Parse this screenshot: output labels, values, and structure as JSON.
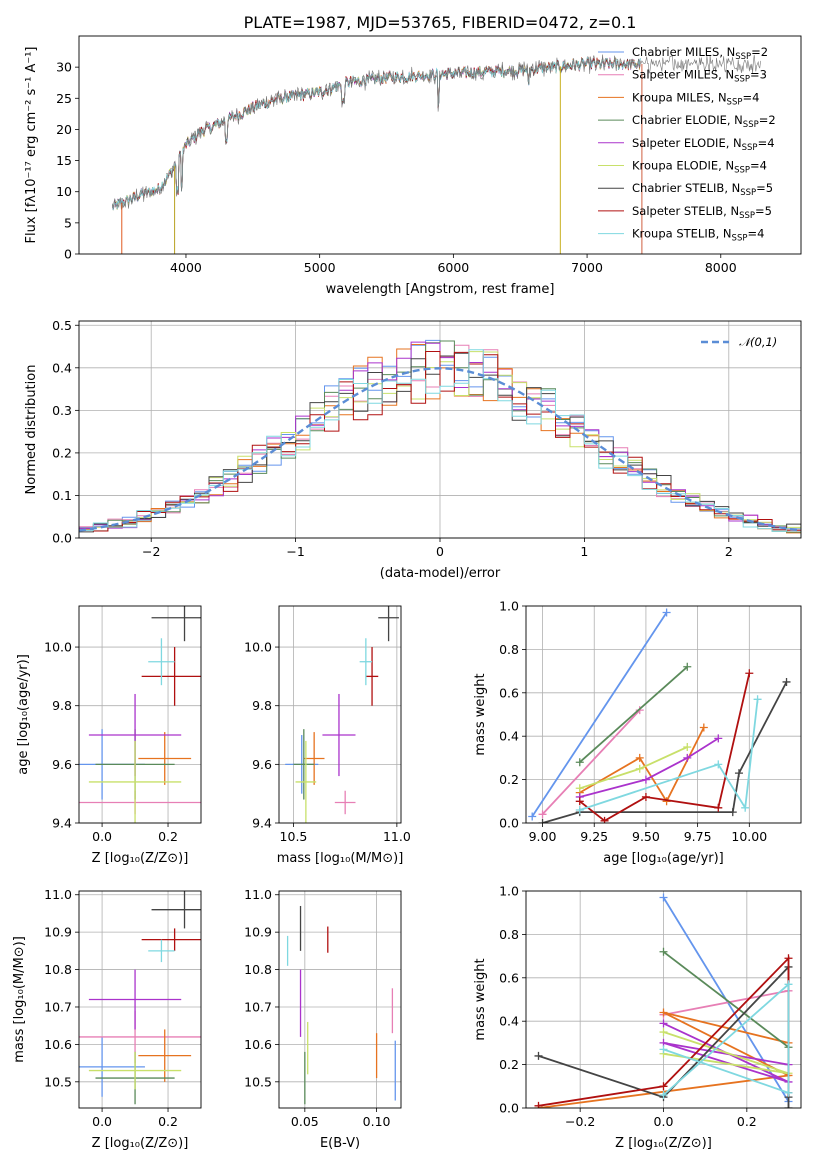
{
  "figure_title": "PLATE=1987, MJD=53765, FIBERID=0472, z=0.1",
  "colors": [
    "#5f8fa0",
    "#de8b8b",
    "#b8860b",
    "#3a7a4a",
    "#a020f0",
    "#dddd55",
    "#333333",
    "#b22222",
    "#40d0e0"
  ],
  "model_colors": {
    "chabrier_miles": "#6495ed",
    "salpeter_miles": "#e77fb5",
    "kroupa_miles": "#e67320",
    "chabrier_elodie": "#5a8a5a",
    "salpeter_elodie": "#aa33cc",
    "kroupa_elodie": "#c8e06a",
    "chabrier_stelib": "#444444",
    "salpeter_stelib": "#b01010",
    "kroupa_stelib": "#7fd8e0"
  },
  "chart_data": [
    {
      "id": "spectrum",
      "type": "line",
      "title": "PLATE=1987, MJD=53765, FIBERID=0472, z=0.1",
      "xlabel": "wavelength [Angstrom, rest frame]",
      "ylabel": "Flux [fλ10⁻¹⁷ erg cm⁻² s⁻¹ A⁻¹]",
      "xlim": [
        3200,
        8600
      ],
      "ylim": [
        0,
        35
      ],
      "xticks": [
        4000,
        5000,
        6000,
        7000,
        8000
      ],
      "yticks": [
        0,
        5,
        10,
        15,
        20,
        25,
        30
      ],
      "legend_position": "top-right",
      "continuum": {
        "x": [
          3450,
          3600,
          3800,
          3900,
          4000,
          4100,
          4300,
          4500,
          4700,
          5000,
          5200,
          5500,
          5800,
          6000,
          6500,
          7000,
          7400
        ],
        "y": [
          7.5,
          9.0,
          10.5,
          13.5,
          17.5,
          19.5,
          21.5,
          23.5,
          25.0,
          26.0,
          27.5,
          28.3,
          28.7,
          29.0,
          29.5,
          30.5,
          30.5
        ]
      },
      "series": [
        {
          "name": "Chabrier MILES, N_SSP=2",
          "label_main": "Chabrier MILES, N",
          "label_sub": "SSP",
          "label_tail": "=2",
          "color": "#6495ed"
        },
        {
          "name": "Salpeter MILES, N_SSP=3",
          "label_main": "Salpeter MILES, N",
          "label_sub": "SSP",
          "label_tail": "=3",
          "color": "#e77fb5"
        },
        {
          "name": "Kroupa MILES, N_SSP=4",
          "label_main": "Kroupa MILES, N",
          "label_sub": "SSP",
          "label_tail": "=4",
          "color": "#e67320"
        },
        {
          "name": "Chabrier ELODIE, N_SSP=2",
          "label_main": "Chabrier ELODIE, N",
          "label_sub": "SSP",
          "label_tail": "=2",
          "color": "#5a8a5a"
        },
        {
          "name": "Salpeter ELODIE, N_SSP=4",
          "label_main": "Salpeter ELODIE, N",
          "label_sub": "SSP",
          "label_tail": "=4",
          "color": "#aa33cc"
        },
        {
          "name": "Kroupa ELODIE, N_SSP=4",
          "label_main": "Kroupa ELODIE, N",
          "label_sub": "SSP",
          "label_tail": "=4",
          "color": "#c8e06a"
        },
        {
          "name": "Chabrier STELIB, N_SSP=5",
          "label_main": "Chabrier STELIB, N",
          "label_sub": "SSP",
          "label_tail": "=5",
          "color": "#444444"
        },
        {
          "name": "Salpeter STELIB, N_SSP=5",
          "label_main": "Salpeter STELIB, N",
          "label_sub": "SSP",
          "label_tail": "=5",
          "color": "#b01010"
        },
        {
          "name": "Kroupa STELIB, N_SSP=4",
          "label_main": "Kroupa STELIB, N",
          "label_sub": "SSP",
          "label_tail": "=4",
          "color": "#7fd8e0"
        }
      ]
    },
    {
      "id": "residuals",
      "type": "histogram",
      "xlabel": "(data-model)/error",
      "ylabel": "Normed distribution",
      "xlim": [
        -2.5,
        2.5
      ],
      "ylim": [
        0,
        0.51
      ],
      "xticks": [
        -2,
        -1,
        0,
        1,
        2
      ],
      "yticks": [
        0.0,
        0.1,
        0.2,
        0.3,
        0.4,
        0.5
      ],
      "legend_position": "top-right",
      "gaussian_label": "𝒩(0,1)",
      "gaussian_color": "#5b8dd6",
      "bin_width": 0.1,
      "bin_start": -2.5
    },
    {
      "id": "age_vs_Z",
      "type": "errorbar",
      "xlabel": "Z [log₁₀(Z/Z⊙)]",
      "ylabel": "age  [log₁₀(age/yr)]",
      "xlim": [
        -0.07,
        0.3
      ],
      "ylim": [
        9.4,
        10.14
      ],
      "xticks": [
        0.0,
        0.2
      ],
      "yticks": [
        9.4,
        9.6,
        9.8,
        10.0
      ],
      "points": [
        {
          "x": 0.0,
          "xerr": 0.13,
          "y": 9.6,
          "yerr": 0.12,
          "color": "#6495ed"
        },
        {
          "x": 0.1,
          "xerr": 0.2,
          "y": 9.47,
          "yerr": 0.04,
          "color": "#e77fb5"
        },
        {
          "x": 0.19,
          "xerr": 0.08,
          "y": 9.62,
          "yerr": 0.09,
          "color": "#e67320"
        },
        {
          "x": 0.1,
          "xerr": 0.12,
          "y": 9.6,
          "yerr": 0.12,
          "color": "#5a8a5a"
        },
        {
          "x": 0.1,
          "xerr": 0.14,
          "y": 9.7,
          "yerr": 0.14,
          "color": "#aa33cc"
        },
        {
          "x": 0.1,
          "xerr": 0.14,
          "y": 9.54,
          "yerr": 0.14,
          "color": "#c8e06a"
        },
        {
          "x": 0.25,
          "xerr": 0.1,
          "y": 10.1,
          "yerr": 0.08,
          "color": "#444444"
        },
        {
          "x": 0.22,
          "xerr": 0.1,
          "y": 9.9,
          "yerr": 0.1,
          "color": "#b01010"
        },
        {
          "x": 0.18,
          "xerr": 0.04,
          "y": 9.95,
          "yerr": 0.08,
          "color": "#7fd8e0"
        }
      ]
    },
    {
      "id": "age_vs_mass",
      "type": "errorbar",
      "xlabel": "mass [log₁₀(M/M⊙)]",
      "ylabel": "",
      "xlim": [
        10.43,
        11.02
      ],
      "ylim": [
        9.4,
        10.14
      ],
      "xticks": [
        10.5,
        11.0
      ],
      "yticks": [
        9.4,
        9.6,
        9.8,
        10.0
      ],
      "points": [
        {
          "x": 10.54,
          "xerr": 0.08,
          "y": 9.6,
          "yerr": 0.1,
          "color": "#6495ed"
        },
        {
          "x": 10.75,
          "xerr": 0.05,
          "y": 9.47,
          "yerr": 0.04,
          "color": "#e77fb5"
        },
        {
          "x": 10.6,
          "xerr": 0.05,
          "y": 9.62,
          "yerr": 0.09,
          "color": "#e67320"
        },
        {
          "x": 10.55,
          "xerr": 0.05,
          "y": 9.6,
          "yerr": 0.12,
          "color": "#5a8a5a"
        },
        {
          "x": 10.72,
          "xerr": 0.08,
          "y": 9.7,
          "yerr": 0.14,
          "color": "#aa33cc"
        },
        {
          "x": 10.56,
          "xerr": 0.05,
          "y": 9.54,
          "yerr": 0.14,
          "color": "#c8e06a"
        },
        {
          "x": 10.96,
          "xerr": 0.05,
          "y": 10.1,
          "yerr": 0.08,
          "color": "#444444"
        },
        {
          "x": 10.88,
          "xerr": 0.03,
          "y": 9.9,
          "yerr": 0.1,
          "color": "#b01010"
        },
        {
          "x": 10.85,
          "xerr": 0.03,
          "y": 9.95,
          "yerr": 0.08,
          "color": "#7fd8e0"
        }
      ]
    },
    {
      "id": "weight_vs_age",
      "type": "line",
      "xlabel": "age  [log₁₀(age/yr)]",
      "ylabel": "mass weight",
      "xlim": [
        8.92,
        10.25
      ],
      "ylim": [
        0,
        1.0
      ],
      "xticks": [
        9.0,
        9.25,
        9.5,
        9.75,
        10.0
      ],
      "yticks": [
        0.0,
        0.2,
        0.4,
        0.6,
        0.8,
        1.0
      ],
      "series": [
        {
          "color": "#6495ed",
          "x": [
            8.95,
            9.6
          ],
          "y": [
            0.03,
            0.97
          ]
        },
        {
          "color": "#e77fb5",
          "x": [
            9.0,
            9.47
          ],
          "y": [
            0.04,
            0.52
          ]
        },
        {
          "color": "#e67320",
          "x": [
            9.18,
            9.47,
            9.6,
            9.78
          ],
          "y": [
            0.14,
            0.3,
            0.1,
            0.44
          ]
        },
        {
          "color": "#5a8a5a",
          "x": [
            9.18,
            9.7
          ],
          "y": [
            0.28,
            0.72
          ]
        },
        {
          "color": "#aa33cc",
          "x": [
            9.18,
            9.5,
            9.7,
            9.85
          ],
          "y": [
            0.12,
            0.2,
            0.3,
            0.39
          ]
        },
        {
          "color": "#c8e06a",
          "x": [
            9.18,
            9.47,
            9.7
          ],
          "y": [
            0.16,
            0.25,
            0.35
          ]
        },
        {
          "color": "#444444",
          "x": [
            9.0,
            9.18,
            9.92,
            9.95,
            10.18
          ],
          "y": [
            0.0,
            0.05,
            0.05,
            0.23,
            0.65
          ]
        },
        {
          "color": "#b01010",
          "x": [
            9.18,
            9.3,
            9.5,
            9.85,
            10.0
          ],
          "y": [
            0.1,
            0.01,
            0.12,
            0.07,
            0.69
          ]
        },
        {
          "color": "#7fd8e0",
          "x": [
            9.18,
            9.85,
            9.98,
            10.04
          ],
          "y": [
            0.06,
            0.27,
            0.07,
            0.57
          ]
        }
      ]
    },
    {
      "id": "mass_vs_Z",
      "type": "errorbar",
      "xlabel": "Z [log₁₀(Z/Z⊙)]",
      "ylabel": "mass [log₁₀(M/M⊙)]",
      "xlim": [
        -0.07,
        0.3
      ],
      "ylim": [
        10.43,
        11.01
      ],
      "xticks": [
        0.0,
        0.2
      ],
      "yticks": [
        10.5,
        10.6,
        10.7,
        10.8,
        10.9,
        11.0
      ],
      "points": [
        {
          "x": 0.0,
          "xerr": 0.13,
          "y": 10.54,
          "yerr": 0.08,
          "color": "#6495ed"
        },
        {
          "x": 0.1,
          "xerr": 0.2,
          "y": 10.62,
          "yerr": 0.07,
          "color": "#e77fb5"
        },
        {
          "x": 0.19,
          "xerr": 0.08,
          "y": 10.57,
          "yerr": 0.07,
          "color": "#e67320"
        },
        {
          "x": 0.1,
          "xerr": 0.12,
          "y": 10.51,
          "yerr": 0.07,
          "color": "#5a8a5a"
        },
        {
          "x": 0.1,
          "xerr": 0.14,
          "y": 10.72,
          "yerr": 0.08,
          "color": "#aa33cc"
        },
        {
          "x": 0.1,
          "xerr": 0.14,
          "y": 10.53,
          "yerr": 0.05,
          "color": "#c8e06a"
        },
        {
          "x": 0.25,
          "xerr": 0.1,
          "y": 10.96,
          "yerr": 0.05,
          "color": "#444444"
        },
        {
          "x": 0.22,
          "xerr": 0.1,
          "y": 10.88,
          "yerr": 0.03,
          "color": "#b01010"
        },
        {
          "x": 0.18,
          "xerr": 0.04,
          "y": 10.85,
          "yerr": 0.03,
          "color": "#7fd8e0"
        }
      ]
    },
    {
      "id": "mass_vs_ebv",
      "type": "errorbar",
      "xlabel": "E(B-V)",
      "ylabel": "",
      "xlim": [
        0.032,
        0.117
      ],
      "ylim": [
        10.43,
        11.01
      ],
      "xticks": [
        0.05,
        0.1
      ],
      "yticks": [
        10.5,
        10.6,
        10.7,
        10.8,
        10.9,
        11.0
      ],
      "points": [
        {
          "x": 0.113,
          "y": 10.53,
          "yerr": 0.08,
          "color": "#6495ed"
        },
        {
          "x": 0.111,
          "y": 10.69,
          "yerr": 0.06,
          "color": "#e77fb5"
        },
        {
          "x": 0.1,
          "y": 10.57,
          "yerr": 0.06,
          "color": "#e67320"
        },
        {
          "x": 0.05,
          "y": 10.51,
          "yerr": 0.07,
          "color": "#5a8a5a"
        },
        {
          "x": 0.047,
          "y": 10.71,
          "yerr": 0.09,
          "color": "#aa33cc"
        },
        {
          "x": 0.052,
          "y": 10.59,
          "yerr": 0.07,
          "color": "#c8e06a"
        },
        {
          "x": 0.047,
          "y": 10.91,
          "yerr": 0.06,
          "color": "#444444"
        },
        {
          "x": 0.066,
          "y": 10.88,
          "yerr": 0.035,
          "color": "#b01010"
        },
        {
          "x": 0.038,
          "y": 10.85,
          "yerr": 0.04,
          "color": "#7fd8e0"
        }
      ]
    },
    {
      "id": "weight_vs_Z",
      "type": "line",
      "xlabel": "Z [log₁₀(Z/Z⊙)]",
      "ylabel": "mass weight",
      "xlim": [
        -0.33,
        0.33
      ],
      "ylim": [
        0,
        1.0
      ],
      "xticks": [
        -0.2,
        0.0,
        0.2
      ],
      "yticks": [
        0.0,
        0.2,
        0.4,
        0.6,
        0.8,
        1.0
      ],
      "series": [
        {
          "color": "#6495ed",
          "x": [
            0.0,
            0.3
          ],
          "y": [
            0.97,
            0.03
          ]
        },
        {
          "color": "#e77fb5",
          "x": [
            0.0,
            0.3
          ],
          "y": [
            0.43,
            0.54
          ]
        },
        {
          "color": "#e67320",
          "x": [
            -0.3,
            0.3,
            0.0,
            0.3
          ],
          "y": [
            0.0,
            0.15,
            0.44,
            0.3
          ]
        },
        {
          "color": "#5a8a5a",
          "x": [
            0.0,
            0.3
          ],
          "y": [
            0.72,
            0.28
          ]
        },
        {
          "color": "#aa33cc",
          "x": [
            0.0,
            0.3,
            0.0,
            0.3
          ],
          "y": [
            0.39,
            0.12,
            0.3,
            0.2
          ]
        },
        {
          "color": "#c8e06a",
          "x": [
            0.0,
            0.3,
            0.0
          ],
          "y": [
            0.35,
            0.16,
            0.25
          ]
        },
        {
          "color": "#444444",
          "x": [
            -0.3,
            0.0,
            0.3,
            0.3,
            0.3
          ],
          "y": [
            0.24,
            0.05,
            0.65,
            0.05,
            0.0
          ]
        },
        {
          "color": "#b01010",
          "x": [
            -0.3,
            0.0,
            0.3,
            0.3
          ],
          "y": [
            0.01,
            0.1,
            0.69,
            0.07
          ]
        },
        {
          "color": "#7fd8e0",
          "x": [
            0.0,
            0.3,
            0.3,
            0.0
          ],
          "y": [
            0.06,
            0.57,
            0.07,
            0.27
          ]
        }
      ]
    }
  ]
}
